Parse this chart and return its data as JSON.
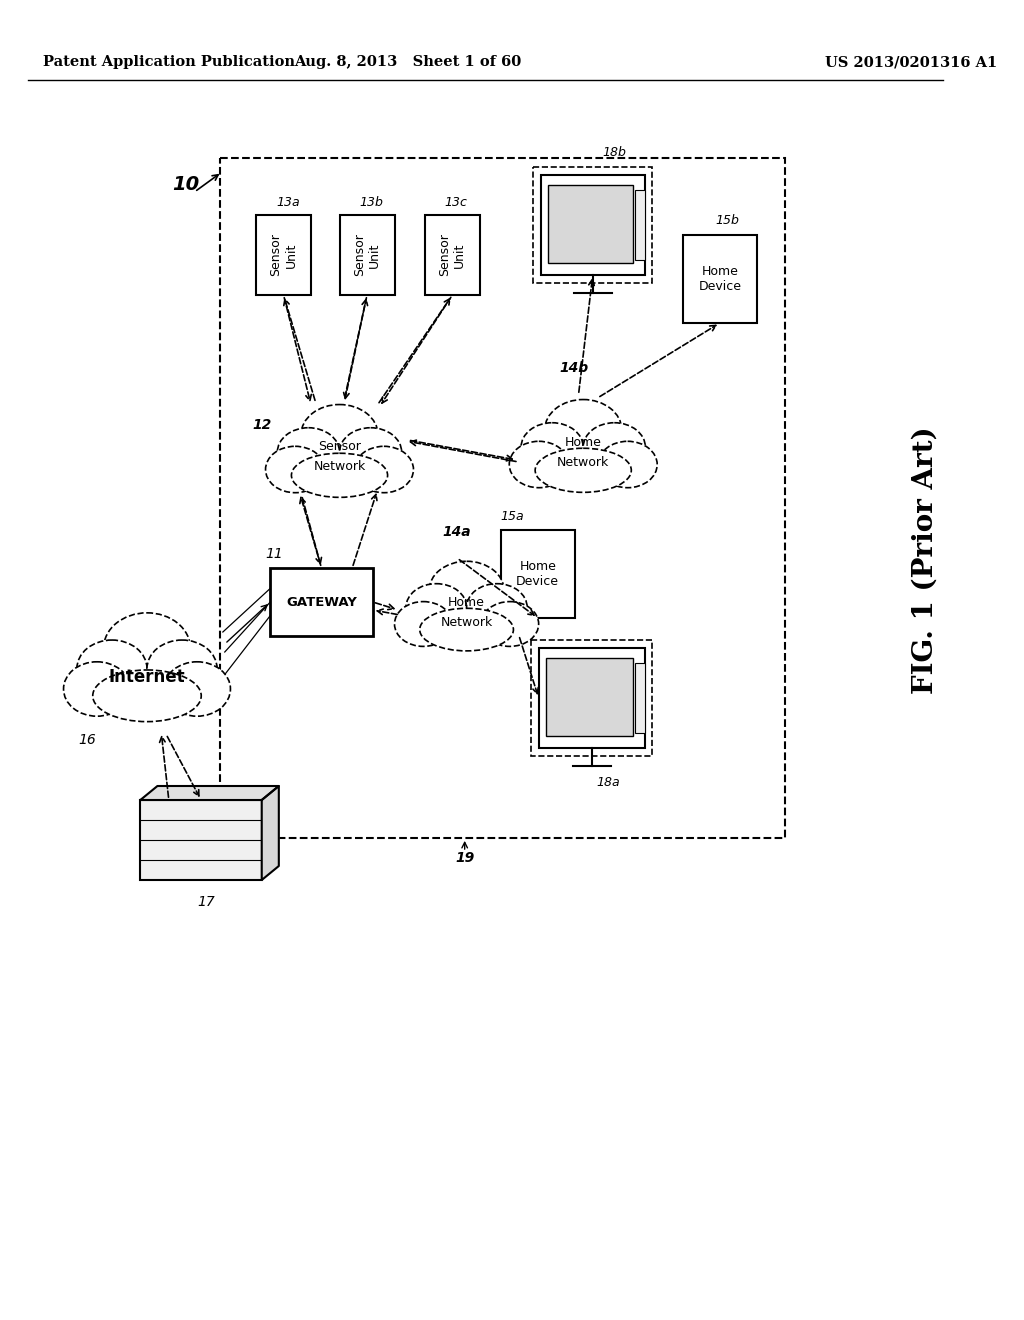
{
  "title_left": "Patent Application Publication",
  "title_center": "Aug. 8, 2013   Sheet 1 of 60",
  "title_right": "US 2013/0201316 A1",
  "fig_label": "FIG. 1 (Prior Art)",
  "background": "#ffffff"
}
